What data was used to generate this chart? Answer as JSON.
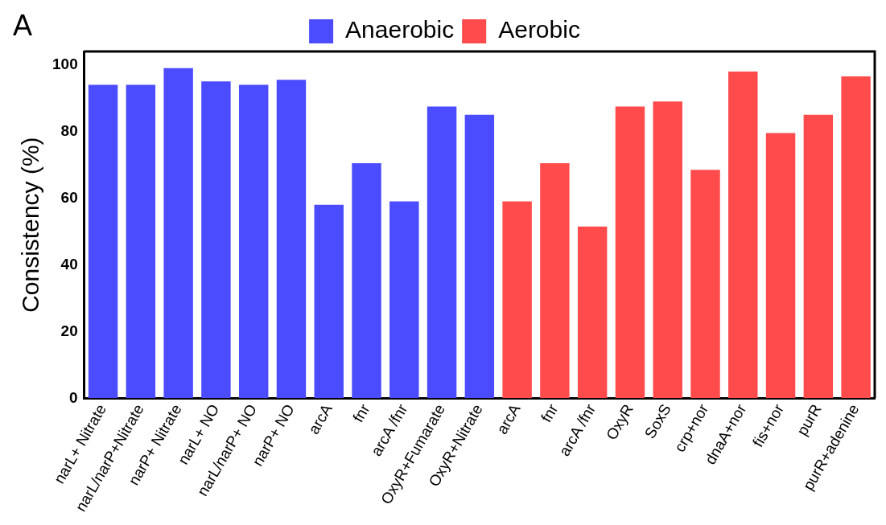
{
  "chart_data": {
    "type": "bar",
    "ylabel": "Consistency (%)",
    "annotations": [
      "A"
    ],
    "categories": [
      "narL+ Nitrate",
      "narL/narP+Nitrate",
      "narP+ Nitrate",
      "narL+ NO",
      "narL/narP+ NO",
      "narP+ NO",
      "arcA",
      "fnr",
      "arcA /fnr",
      "OxyR+Fumarate",
      "OxyR+Nitrate",
      "arcA",
      "fnr",
      "arcA /fnr",
      "OxyR",
      "SoxS",
      "crp+nor",
      "dnaA+nor",
      "fis+nor",
      "purR",
      "purR+adenine"
    ],
    "series": [
      {
        "name": "Anaerobic",
        "color": "#4b4bff",
        "values": [
          94,
          94,
          99,
          95,
          94,
          95.5,
          58,
          70.5,
          59,
          87.5,
          85,
          null,
          null,
          null,
          null,
          null,
          null,
          null,
          null,
          null,
          null
        ]
      },
      {
        "name": "Aerobic",
        "color": "#ff4b4b",
        "values": [
          null,
          null,
          null,
          null,
          null,
          null,
          null,
          null,
          null,
          null,
          null,
          59,
          70.5,
          51.5,
          87.5,
          89,
          68.5,
          98,
          79.5,
          85,
          96.5
        ]
      }
    ],
    "ylim": [
      0,
      104
    ],
    "yticks": [
      0,
      20,
      40,
      60,
      80,
      100
    ],
    "grid": false,
    "legend": "top"
  }
}
